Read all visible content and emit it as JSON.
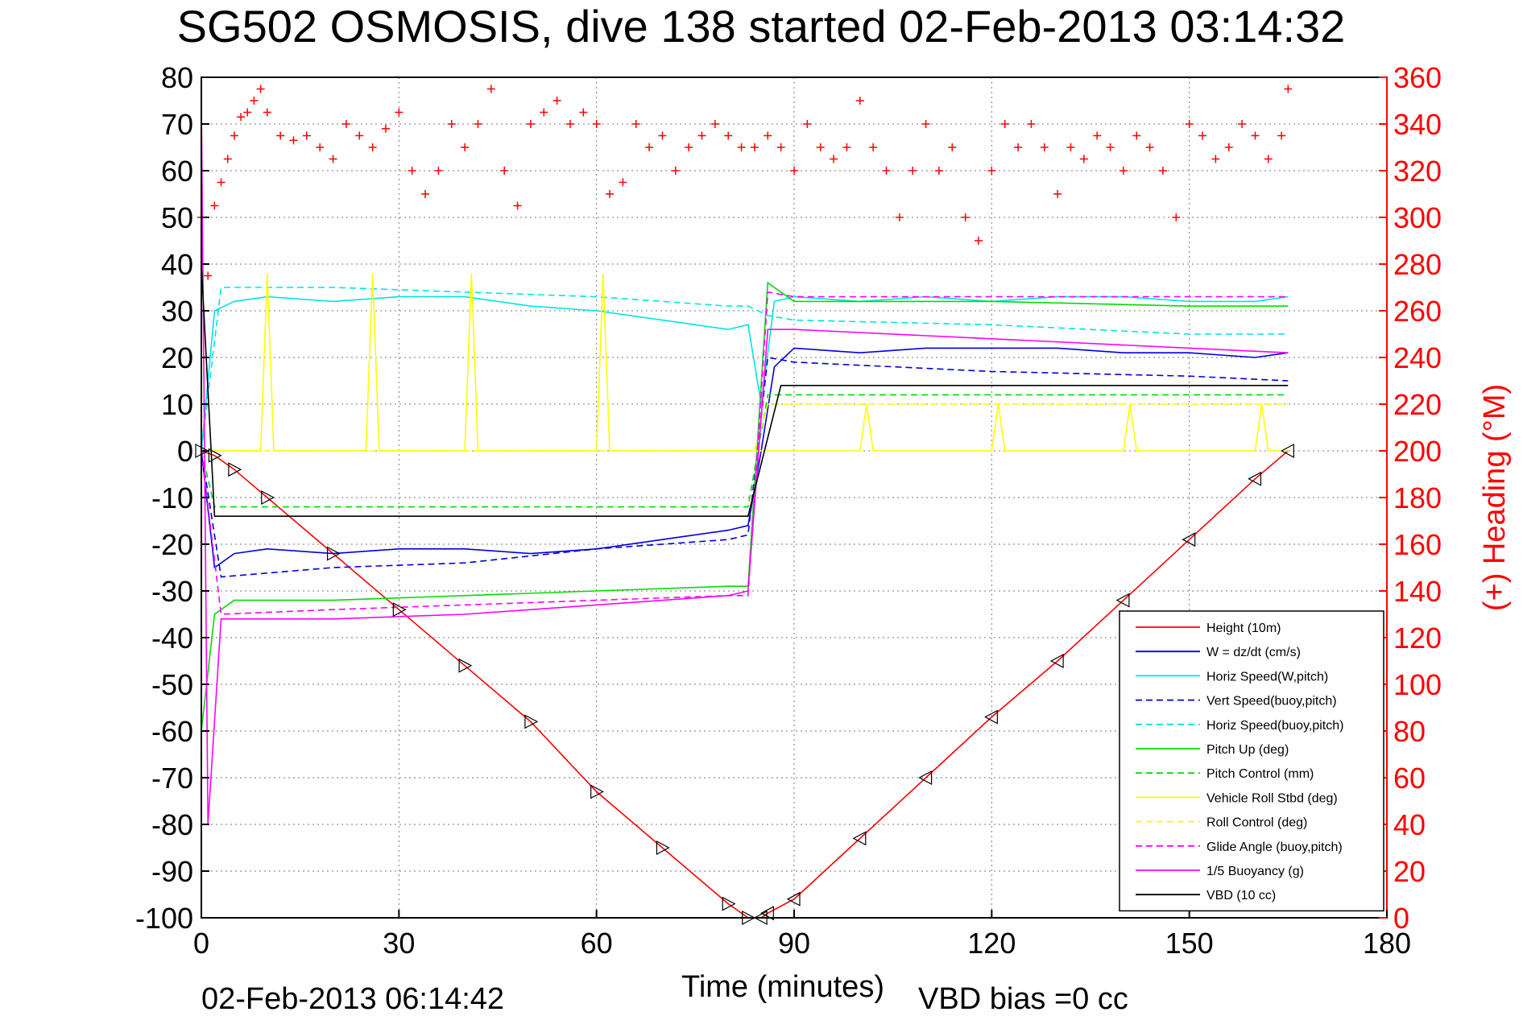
{
  "chart_data": {
    "type": "line",
    "title": "SG502 OSMOSIS, dive 138 started 02-Feb-2013 03:14:32",
    "xlabel": "Time (minutes)",
    "ylabel": "",
    "y2label": "(+) Heading (°M)",
    "xlim": [
      0,
      180
    ],
    "ylim": [
      -100,
      80
    ],
    "y2lim": [
      0,
      360
    ],
    "x_ticks": [
      "0",
      "30",
      "60",
      "90",
      "120",
      "150",
      "180"
    ],
    "y_ticks": [
      "80",
      "70",
      "60",
      "50",
      "40",
      "30",
      "20",
      "10",
      "0",
      "-10",
      "-20",
      "-30",
      "-40",
      "-50",
      "-60",
      "-70",
      "-80",
      "-90",
      "-100"
    ],
    "y2_ticks": [
      "360",
      "340",
      "320",
      "300",
      "280",
      "260",
      "240",
      "220",
      "200",
      "180",
      "160",
      "140",
      "120",
      "100",
      "80",
      "60",
      "40",
      "20",
      "0"
    ],
    "grid": true,
    "legend_position": "bottom-right",
    "colors": {
      "height": "#ff0000",
      "w": "#0000dd",
      "horiz": "#00e5e5",
      "pitch": "#00dd00",
      "roll": "#ffff00",
      "buoy": "#ff00ff",
      "vbd": "#000000",
      "heading": "#ff0000",
      "right_axis": "#ff0000"
    },
    "series": [
      {
        "name": "Height (10m)",
        "style": "solid",
        "color": "#ff0000",
        "x": [
          0,
          2,
          5,
          10,
          20,
          30,
          40,
          50,
          60,
          70,
          80,
          83,
          85,
          86,
          90,
          100,
          110,
          120,
          130,
          140,
          150,
          160,
          165
        ],
        "y": [
          0,
          -1,
          -4,
          -10,
          -22,
          -34,
          -46,
          -58,
          -73,
          -85,
          -97,
          -100,
          -100,
          -99,
          -96,
          -83,
          -70,
          -57,
          -45,
          -32,
          -19,
          -6,
          0
        ]
      },
      {
        "name": "W = dz/dt (cm/s)",
        "style": "solid",
        "color": "#0000dd",
        "x": [
          0,
          2,
          5,
          10,
          20,
          30,
          40,
          50,
          60,
          70,
          80,
          83,
          85,
          87,
          90,
          100,
          110,
          120,
          130,
          140,
          150,
          160,
          165
        ],
        "y": [
          0,
          -25,
          -22,
          -21,
          -22,
          -21,
          -21,
          -22,
          -21,
          -19,
          -17,
          -16,
          0,
          18,
          22,
          21,
          22,
          22,
          22,
          21,
          21,
          20,
          21
        ]
      },
      {
        "name": "Horiz Speed(W,pitch)",
        "style": "solid",
        "color": "#00e5e5",
        "x": [
          0,
          2,
          5,
          10,
          20,
          30,
          40,
          50,
          60,
          70,
          80,
          83,
          85,
          87,
          90,
          100,
          110,
          120,
          130,
          140,
          150,
          160,
          165
        ],
        "y": [
          0,
          30,
          32,
          33,
          32,
          33,
          33,
          31,
          30,
          28,
          26,
          27,
          10,
          32,
          33,
          32,
          33,
          32,
          33,
          33,
          32,
          32,
          33
        ]
      },
      {
        "name": "Vert Speed(buoy,pitch)",
        "style": "dashed",
        "color": "#0000dd",
        "x": [
          0,
          3,
          20,
          40,
          60,
          80,
          83,
          86,
          90,
          120,
          150,
          165
        ],
        "y": [
          0,
          -27,
          -25,
          -24,
          -21,
          -19,
          -18,
          20,
          19,
          17,
          16,
          15
        ]
      },
      {
        "name": "Horiz Speed(buoy,pitch)",
        "style": "dashed",
        "color": "#00e5e5",
        "x": [
          0,
          3,
          20,
          40,
          60,
          80,
          83,
          86,
          90,
          120,
          150,
          165
        ],
        "y": [
          0,
          35,
          35,
          34,
          33,
          31,
          31,
          29,
          28,
          27,
          25,
          25
        ]
      },
      {
        "name": "Pitch Up (deg)",
        "style": "solid",
        "color": "#00dd00",
        "x": [
          0,
          2,
          5,
          20,
          40,
          60,
          80,
          83,
          86,
          90,
          120,
          150,
          165
        ],
        "y": [
          -60,
          -35,
          -32,
          -32,
          -31,
          -30,
          -29,
          -29,
          36,
          32,
          32,
          31,
          31
        ]
      },
      {
        "name": "Pitch Control (mm)",
        "style": "dashed",
        "color": "#00dd00",
        "x": [
          0,
          2,
          83,
          86,
          165
        ],
        "y": [
          0,
          -12,
          -12,
          12,
          12
        ]
      },
      {
        "name": "Vehicle Roll Stbd (deg)",
        "style": "solid",
        "color": "#ffff00",
        "x": [
          0,
          5,
          9,
          10,
          11,
          25,
          26,
          27,
          28,
          40,
          41,
          42,
          43,
          60,
          61,
          62,
          63,
          83,
          85,
          88,
          100,
          101,
          102,
          103,
          120,
          121,
          122,
          123,
          140,
          141,
          142,
          143,
          160,
          161,
          162,
          163,
          165
        ],
        "y": [
          0,
          0,
          0,
          38,
          0,
          0,
          38,
          0,
          0,
          0,
          38,
          0,
          0,
          0,
          38,
          0,
          0,
          0,
          0,
          0,
          0,
          10,
          0,
          0,
          0,
          10,
          0,
          0,
          0,
          10,
          0,
          0,
          0,
          10,
          0,
          0,
          0
        ]
      },
      {
        "name": "Roll Control (deg)",
        "style": "dashed",
        "color": "#ffff00",
        "x": [
          0,
          2,
          84,
          86,
          165
        ],
        "y": [
          0,
          0,
          0,
          10,
          10
        ]
      },
      {
        "name": "Glide Angle (buoy,pitch)",
        "style": "dashed",
        "color": "#ff00ff",
        "x": [
          0,
          3,
          20,
          40,
          60,
          80,
          83,
          86,
          90,
          120,
          150,
          165
        ],
        "y": [
          0,
          -35,
          -34,
          -33,
          -32,
          -31,
          -31,
          34,
          33,
          33,
          33,
          33
        ]
      },
      {
        "name": "1/5 Buoyancy (g)",
        "style": "solid",
        "color": "#ff00ff",
        "x": [
          0,
          1,
          3,
          20,
          40,
          60,
          80,
          83,
          86,
          90,
          120,
          150,
          165
        ],
        "y": [
          75,
          -80,
          -36,
          -36,
          -35,
          -33,
          -31,
          -30,
          26,
          26,
          24,
          22,
          21
        ]
      },
      {
        "name": "VBD (10 cc)",
        "style": "solid",
        "color": "#000000",
        "x": [
          0,
          2,
          83,
          88,
          165
        ],
        "y": [
          40,
          -14,
          -14,
          14,
          14
        ]
      }
    ],
    "heading": {
      "name": "(+) Heading (°M)",
      "marker": "plus",
      "color": "#ff0000",
      "x": [
        0,
        1,
        2,
        3,
        4,
        5,
        6,
        7,
        8,
        9,
        10,
        12,
        14,
        16,
        18,
        20,
        22,
        24,
        26,
        28,
        30,
        32,
        34,
        36,
        38,
        40,
        42,
        44,
        46,
        48,
        50,
        52,
        54,
        56,
        58,
        60,
        62,
        64,
        66,
        68,
        70,
        72,
        74,
        76,
        78,
        80,
        82,
        84,
        86,
        88,
        90,
        92,
        94,
        96,
        98,
        100,
        102,
        104,
        106,
        108,
        110,
        112,
        114,
        116,
        118,
        120,
        122,
        124,
        126,
        128,
        130,
        132,
        134,
        136,
        138,
        140,
        142,
        144,
        146,
        148,
        150,
        152,
        154,
        156,
        158,
        160,
        162,
        164,
        165
      ],
      "y": [
        300,
        275,
        305,
        315,
        325,
        335,
        343,
        345,
        350,
        355,
        345,
        335,
        333,
        335,
        330,
        325,
        340,
        335,
        330,
        338,
        345,
        320,
        310,
        320,
        340,
        330,
        340,
        355,
        320,
        305,
        340,
        345,
        350,
        340,
        345,
        340,
        310,
        315,
        340,
        330,
        335,
        320,
        330,
        335,
        340,
        335,
        330,
        330,
        335,
        330,
        320,
        340,
        330,
        325,
        330,
        350,
        330,
        320,
        300,
        320,
        340,
        320,
        330,
        300,
        290,
        320,
        340,
        330,
        340,
        330,
        310,
        330,
        325,
        335,
        330,
        320,
        335,
        330,
        320,
        300,
        340,
        335,
        325,
        330,
        340,
        335,
        325,
        335,
        355
      ]
    }
  },
  "footer": {
    "end_time": "02-Feb-2013 06:14:42",
    "vbd_bias": "VBD bias =0 cc"
  }
}
